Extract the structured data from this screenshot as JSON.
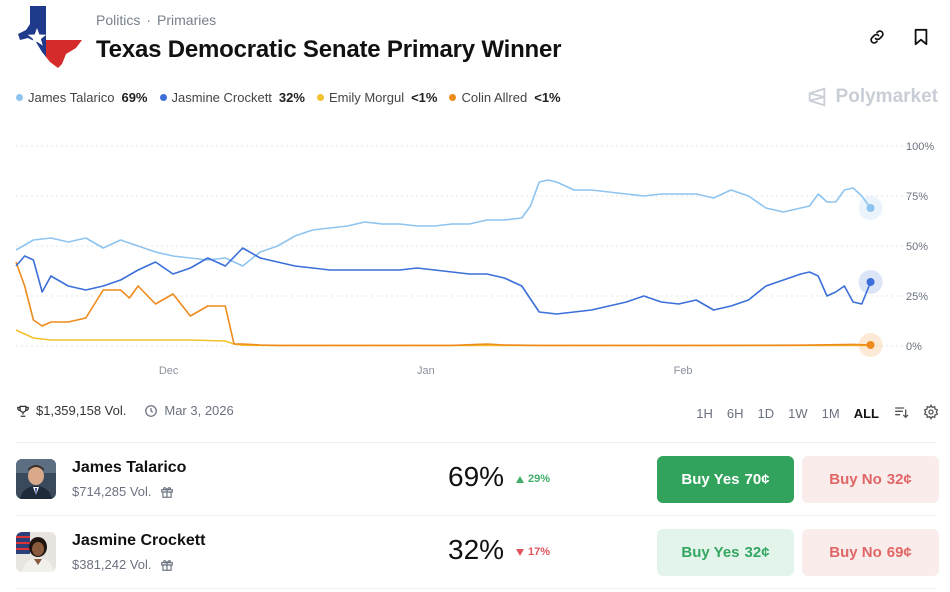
{
  "breadcrumb": {
    "category": "Politics",
    "subcategory": "Primaries"
  },
  "title": "Texas Democratic Senate Primary Winner",
  "icons": {
    "logo": "texas-flag-map-icon",
    "link": "link-icon",
    "bookmark": "bookmark-icon",
    "trophy": "trophy-icon",
    "clock": "clock-icon",
    "gift": "gift-icon",
    "sort": "sort-lines-icon",
    "settings": "gear-icon",
    "brand": "polymarket-logo-icon"
  },
  "legend": [
    {
      "name": "James Talarico",
      "value": "69%",
      "color": "#8ec4f0"
    },
    {
      "name": "Jasmine Crockett",
      "value": "32%",
      "color": "#3b6fd9"
    },
    {
      "name": "Emily Morgul",
      "value": "<1%",
      "color": "#f2c12e"
    },
    {
      "name": "Colin Allred",
      "value": "<1%",
      "color": "#ef8a1c"
    }
  ],
  "brand": "Polymarket",
  "chart_data": {
    "type": "line",
    "x_tick_labels": [
      "Dec",
      "Jan",
      "Feb"
    ],
    "y_tick_labels": [
      "100%",
      "75%",
      "50%",
      "25%",
      "0%"
    ],
    "ylim": [
      0,
      100
    ],
    "grid": true,
    "xlim": [
      0,
      100
    ],
    "series": [
      {
        "name": "James Talarico",
        "color": "#8ec4f0",
        "last": 69,
        "x": [
          0,
          2,
          4,
          6,
          8,
          10,
          12,
          14,
          16,
          18,
          20,
          22,
          24,
          26,
          28,
          30,
          32,
          34,
          36,
          38,
          40,
          42,
          44,
          46,
          48,
          50,
          52,
          54,
          56,
          58,
          59,
          60,
          61,
          62,
          64,
          66,
          68,
          70,
          72,
          74,
          76,
          78,
          80,
          82,
          84,
          86,
          88,
          89,
          90,
          91,
          92,
          93,
          94,
          95,
          96,
          97,
          98
        ],
        "values": [
          48,
          53,
          54,
          52,
          54,
          49,
          53,
          50,
          47,
          45,
          44,
          43,
          44,
          40,
          47,
          50,
          55,
          58,
          59,
          60,
          62,
          61,
          61,
          60,
          60,
          61,
          61,
          63,
          63,
          64,
          70,
          82,
          83,
          82,
          78,
          78,
          77,
          76,
          75,
          76,
          76,
          76,
          74,
          78,
          75,
          69,
          67,
          68,
          69,
          70,
          76,
          72,
          72,
          78,
          79,
          75,
          69
        ]
      },
      {
        "name": "Jasmine Crockett",
        "color": "#3b6fd9",
        "last": 32,
        "x": [
          0,
          1,
          2,
          3,
          4,
          6,
          8,
          10,
          12,
          14,
          16,
          18,
          20,
          22,
          24,
          26,
          28,
          30,
          32,
          34,
          36,
          38,
          40,
          42,
          44,
          46,
          48,
          50,
          52,
          54,
          56,
          58,
          60,
          62,
          64,
          66,
          68,
          70,
          72,
          74,
          76,
          78,
          80,
          82,
          84,
          86,
          88,
          90,
          91,
          92,
          93,
          94,
          95,
          96,
          97,
          98
        ],
        "values": [
          40,
          45,
          43,
          27,
          35,
          30,
          28,
          30,
          33,
          38,
          42,
          36,
          39,
          44,
          40,
          49,
          44,
          42,
          40,
          39,
          38,
          38,
          38,
          38,
          38,
          39,
          38,
          37,
          36,
          36,
          34,
          30,
          17,
          16,
          17,
          18,
          20,
          22,
          25,
          22,
          21,
          23,
          18,
          20,
          23,
          30,
          33,
          36,
          37,
          35,
          25,
          27,
          30,
          22,
          21,
          32
        ]
      },
      {
        "name": "Emily Morgul",
        "color": "#f2c12e",
        "last": 0.5,
        "x": [
          0,
          2,
          4,
          8,
          12,
          16,
          20,
          24,
          25,
          26,
          30,
          40,
          50,
          60,
          70,
          80,
          90,
          98
        ],
        "values": [
          8,
          4,
          3,
          3,
          3,
          3,
          3,
          2.5,
          1,
          0.4,
          0.3,
          0.3,
          0.3,
          0.3,
          0.3,
          0.3,
          0.3,
          0.3
        ]
      },
      {
        "name": "Colin Allred",
        "color": "#ef8a1c",
        "last": 0.5,
        "x": [
          0,
          1,
          2,
          3,
          4,
          6,
          8,
          10,
          12,
          13,
          14,
          16,
          18,
          20,
          22,
          24,
          25,
          26,
          28,
          30,
          40,
          50,
          54,
          56,
          60,
          70,
          80,
          90,
          96,
          98
        ],
        "values": [
          42,
          30,
          13,
          10,
          12,
          12,
          14,
          28,
          28,
          24,
          30,
          21,
          26,
          15,
          20,
          20,
          1,
          1,
          0.5,
          0.3,
          0.3,
          0.3,
          1,
          0.5,
          0.3,
          0.3,
          0.3,
          0.4,
          0.8,
          0.5
        ]
      }
    ]
  },
  "stats": {
    "volume": "$1,359,158 Vol.",
    "date": "Mar 3, 2026"
  },
  "ranges": [
    {
      "label": "1H",
      "active": false
    },
    {
      "label": "6H",
      "active": false
    },
    {
      "label": "1D",
      "active": false
    },
    {
      "label": "1W",
      "active": false
    },
    {
      "label": "1M",
      "active": false
    },
    {
      "label": "ALL",
      "active": true
    }
  ],
  "outcomes": [
    {
      "name": "James Talarico",
      "volume": "$714,285 Vol.",
      "percent": "69%",
      "change": "29%",
      "direction": "up",
      "yes_label": "Buy Yes",
      "yes_price": "70¢",
      "no_label": "Buy No",
      "no_price": "32¢",
      "yes_style": "solid"
    },
    {
      "name": "Jasmine Crockett",
      "volume": "$381,242 Vol.",
      "percent": "32%",
      "change": "17%",
      "direction": "down",
      "yes_label": "Buy Yes",
      "yes_price": "32¢",
      "no_label": "Buy No",
      "no_price": "69¢",
      "yes_style": "soft"
    }
  ]
}
